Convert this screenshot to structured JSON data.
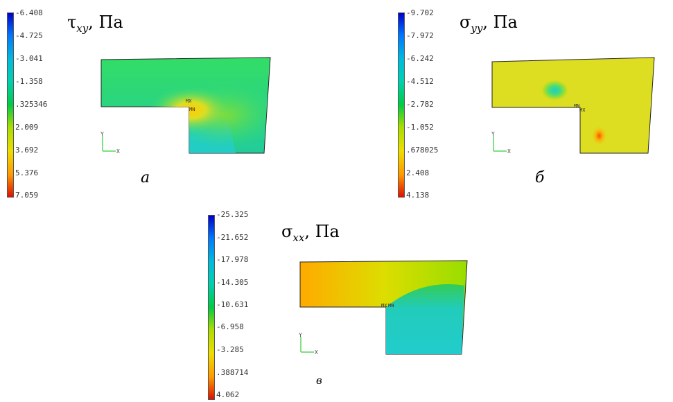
{
  "panels": [
    {
      "id": "a",
      "title_symbol": "τ",
      "title_sub": "xy",
      "title_unit": ", Па",
      "caption": "а",
      "legend_values": [
        "-6.408",
        "-4.725",
        "-3.041",
        "-1.358",
        ".325346",
        "2.009",
        "3.692",
        "5.376",
        "7.059"
      ],
      "markers": [
        "MX",
        "MN"
      ]
    },
    {
      "id": "b",
      "title_symbol": "σ",
      "title_sub": "yy",
      "title_unit": ", Па",
      "caption": "б",
      "legend_values": [
        "-9.702",
        "-7.972",
        "-6.242",
        "-4.512",
        "-2.782",
        "-1.052",
        ".678025",
        "2.408",
        "4.138"
      ],
      "markers": [
        "MN",
        "MX"
      ]
    },
    {
      "id": "c",
      "title_symbol": "σ",
      "title_sub": "xx",
      "title_unit": ", Па",
      "caption": "в",
      "legend_values": [
        "-25.325",
        "-21.652",
        "-17.978",
        "-14.305",
        "-10.631",
        "-6.958",
        "-3.285",
        ".388714",
        "4.062"
      ],
      "markers": [
        "MX",
        "MN"
      ]
    }
  ],
  "triad": {
    "y_label": "Y",
    "x_label": "X"
  },
  "colors": {
    "scale": [
      "#0000ff",
      "#0088ff",
      "#00cccc",
      "#00dd88",
      "#00cc44",
      "#88dd00",
      "#dddd00",
      "#ff9900",
      "#ff2200"
    ]
  }
}
